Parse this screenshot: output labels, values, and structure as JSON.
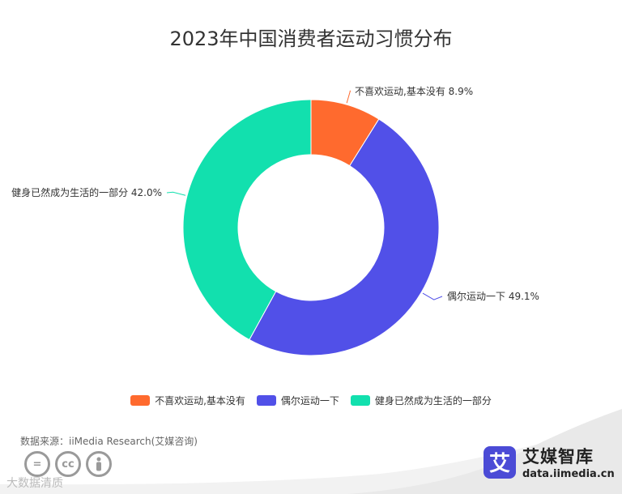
{
  "chart_data": {
    "type": "pie",
    "title": "2023年中国消费者运动习惯分布",
    "categories": [
      "不喜欢运动,基本没有",
      "偶尔运动一下",
      "健身已然成为生活的一部分"
    ],
    "values": [
      8.9,
      49.1,
      42.0
    ],
    "value_labels": [
      "不喜欢运动,基本没有 8.9%",
      "偶尔运动一下 49.1%",
      "健身已然成为生活的一部分 42.0%"
    ],
    "colors": [
      "#ff6a2e",
      "#5150e8",
      "#12e0ae"
    ],
    "legend_position": "bottom",
    "donut": true
  },
  "source_text": "数据来源：iiMedia Research(艾媒咨询)",
  "watermark_text": "大数据清质",
  "brand": {
    "logo_char": "艾",
    "name": "艾媒智库",
    "url": "data.iimedia.cn"
  }
}
